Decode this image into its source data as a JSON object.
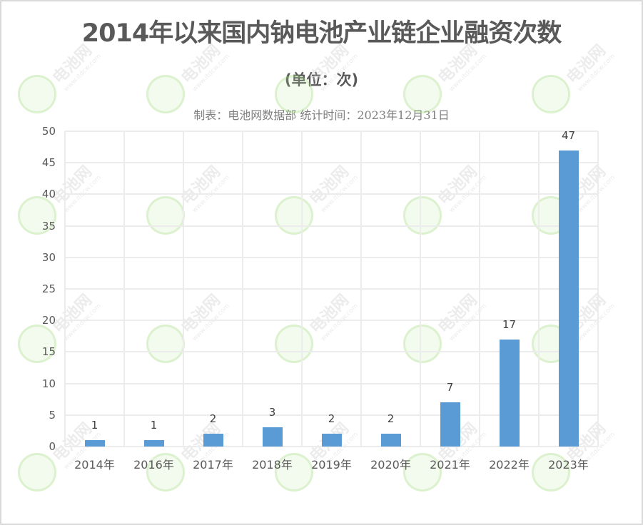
{
  "header": {
    "title": "2014年以来国内钠电池产业链企业融资次数",
    "unit": "(单位：次)",
    "source": "制表：电池网数据部 统计时间：2023年12月31日"
  },
  "watermark": {
    "text": "电池网",
    "url": "www.itdcw.com"
  },
  "chart_data": {
    "type": "bar",
    "title": "2014年以来国内钠电池产业链企业融资次数",
    "subtitle": "(单位：次)",
    "annotation": "制表：电池网数据部 统计时间：2023年12月31日",
    "categories": [
      "2014年",
      "2016年",
      "2017年",
      "2018年",
      "2019年",
      "2020年",
      "2021年",
      "2022年",
      "2023年"
    ],
    "values": [
      1,
      1,
      2,
      3,
      2,
      2,
      7,
      17,
      47
    ],
    "xlabel": "",
    "ylabel": "",
    "ylim": [
      0,
      50
    ],
    "yticks": [
      0,
      5,
      10,
      15,
      20,
      25,
      30,
      35,
      40,
      45,
      50
    ],
    "grid": true,
    "legend": null,
    "bar_color": "#5B9BD5"
  }
}
